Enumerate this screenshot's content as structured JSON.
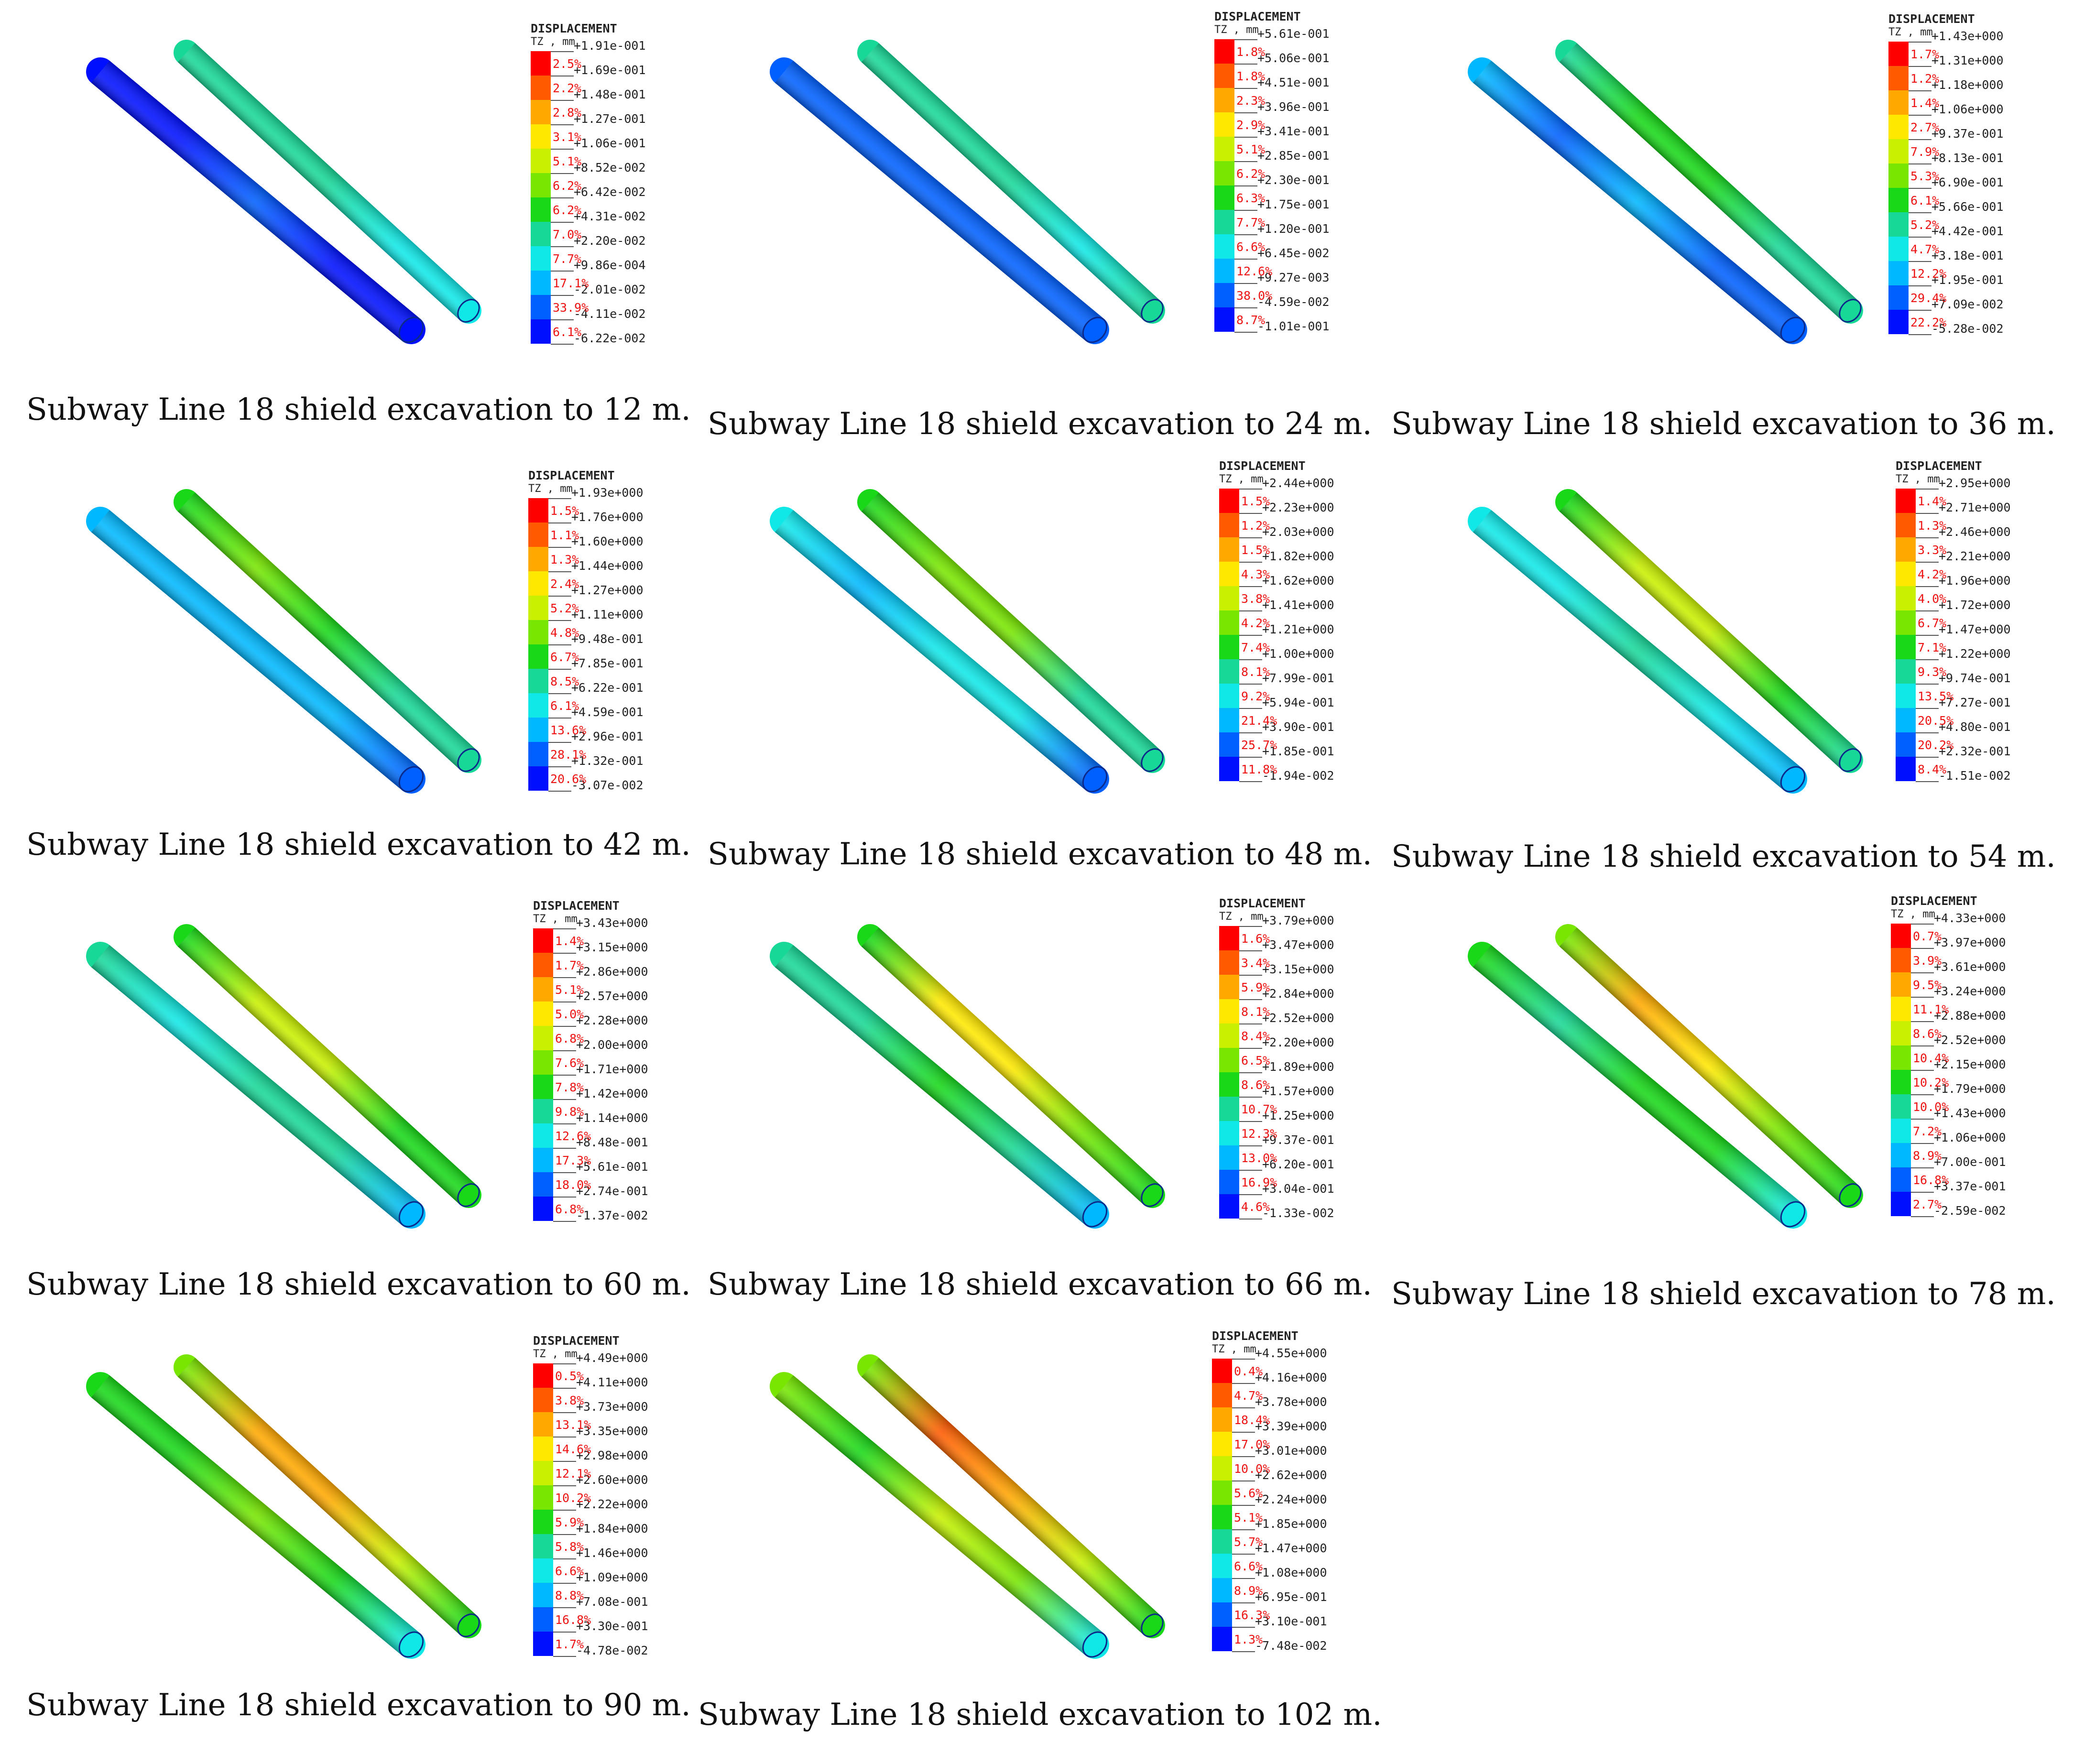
{
  "legend_title": "DISPLACEMENT",
  "legend_unit": "TZ , mm",
  "band_colors": [
    "#ff0000",
    "#ff5a00",
    "#ffa800",
    "#ffe800",
    "#c8f000",
    "#78e600",
    "#18d818",
    "#18d898",
    "#10e8e8",
    "#00b8ff",
    "#0060ff",
    "#0010ff"
  ],
  "panels": [
    {
      "caption": "Subway Line 18 shield excavation to 12 m.",
      "values": [
        "+1.91e-001",
        "+1.69e-001",
        "+1.48e-001",
        "+1.27e-001",
        "+1.06e-001",
        "+8.52e-002",
        "+6.42e-002",
        "+4.31e-002",
        "+2.20e-002",
        "+9.86e-004",
        "-2.01e-002",
        "-4.11e-002",
        "-6.22e-002"
      ],
      "percents": [
        "2.5%",
        "2.2%",
        "2.8%",
        "3.1%",
        "5.1%",
        "6.2%",
        "6.2%",
        "7.0%",
        "7.7%",
        "17.1%",
        "33.9%",
        "6.1%"
      ]
    },
    {
      "caption": "Subway Line 18 shield excavation to 24 m.",
      "values": [
        "+5.61e-001",
        "+5.06e-001",
        "+4.51e-001",
        "+3.96e-001",
        "+3.41e-001",
        "+2.85e-001",
        "+2.30e-001",
        "+1.75e-001",
        "+1.20e-001",
        "+6.45e-002",
        "+9.27e-003",
        "-4.59e-002",
        "-1.01e-001"
      ],
      "percents": [
        "1.8%",
        "1.8%",
        "2.3%",
        "2.9%",
        "5.1%",
        "6.2%",
        "6.3%",
        "7.7%",
        "6.6%",
        "12.6%",
        "38.0%",
        "8.7%"
      ]
    },
    {
      "caption": "Subway Line 18 shield excavation to 36 m.",
      "values": [
        "+1.43e+000",
        "+1.31e+000",
        "+1.18e+000",
        "+1.06e+000",
        "+9.37e-001",
        "+8.13e-001",
        "+6.90e-001",
        "+5.66e-001",
        "+4.42e-001",
        "+3.18e-001",
        "+1.95e-001",
        "+7.09e-002",
        "-5.28e-002"
      ],
      "percents": [
        "1.7%",
        "1.2%",
        "1.4%",
        "2.7%",
        "7.9%",
        "5.3%",
        "6.1%",
        "5.2%",
        "4.7%",
        "12.2%",
        "29.4%",
        "22.2%"
      ]
    },
    {
      "caption": "Subway Line 18 shield excavation to 42 m.",
      "values": [
        "+1.93e+000",
        "+1.76e+000",
        "+1.60e+000",
        "+1.44e+000",
        "+1.27e+000",
        "+1.11e+000",
        "+9.48e-001",
        "+7.85e-001",
        "+6.22e-001",
        "+4.59e-001",
        "+2.96e-001",
        "+1.32e-001",
        "-3.07e-002"
      ],
      "percents": [
        "1.5%",
        "1.1%",
        "1.3%",
        "2.4%",
        "5.2%",
        "4.8%",
        "6.7%",
        "8.5%",
        "6.1%",
        "13.6%",
        "28.1%",
        "20.6%"
      ]
    },
    {
      "caption": "Subway Line 18 shield excavation to 48 m.",
      "values": [
        "+2.44e+000",
        "+2.23e+000",
        "+2.03e+000",
        "+1.82e+000",
        "+1.62e+000",
        "+1.41e+000",
        "+1.21e+000",
        "+1.00e+000",
        "+7.99e-001",
        "+5.94e-001",
        "+3.90e-001",
        "+1.85e-001",
        "-1.94e-002"
      ],
      "percents": [
        "1.5%",
        "1.2%",
        "1.5%",
        "4.3%",
        "3.8%",
        "4.2%",
        "7.4%",
        "8.1%",
        "9.2%",
        "21.4%",
        "25.7%",
        "11.8%"
      ]
    },
    {
      "caption": "Subway Line 18 shield excavation to 54 m.",
      "values": [
        "+2.95e+000",
        "+2.71e+000",
        "+2.46e+000",
        "+2.21e+000",
        "+1.96e+000",
        "+1.72e+000",
        "+1.47e+000",
        "+1.22e+000",
        "+9.74e-001",
        "+7.27e-001",
        "+4.80e-001",
        "+2.32e-001",
        "-1.51e-002"
      ],
      "percents": [
        "1.4%",
        "1.3%",
        "3.3%",
        "4.2%",
        "4.0%",
        "6.7%",
        "7.1%",
        "9.3%",
        "13.5%",
        "20.5%",
        "20.2%",
        "8.4%"
      ]
    },
    {
      "caption": "Subway Line 18 shield excavation to 60 m.",
      "values": [
        "+3.43e+000",
        "+3.15e+000",
        "+2.86e+000",
        "+2.57e+000",
        "+2.28e+000",
        "+2.00e+000",
        "+1.71e+000",
        "+1.42e+000",
        "+1.14e+000",
        "+8.48e-001",
        "+5.61e-001",
        "+2.74e-001",
        "-1.37e-002"
      ],
      "percents": [
        "1.4%",
        "1.7%",
        "5.1%",
        "5.0%",
        "6.8%",
        "7.6%",
        "7.8%",
        "9.8%",
        "12.6%",
        "17.3%",
        "18.0%",
        "6.8%"
      ]
    },
    {
      "caption": "Subway Line 18 shield excavation to 66 m.",
      "values": [
        "+3.79e+000",
        "+3.47e+000",
        "+3.15e+000",
        "+2.84e+000",
        "+2.52e+000",
        "+2.20e+000",
        "+1.89e+000",
        "+1.57e+000",
        "+1.25e+000",
        "+9.37e-001",
        "+6.20e-001",
        "+3.04e-001",
        "-1.33e-002"
      ],
      "percents": [
        "1.6%",
        "3.4%",
        "5.9%",
        "8.1%",
        "8.4%",
        "6.5%",
        "8.6%",
        "10.7%",
        "12.3%",
        "13.0%",
        "16.9%",
        "4.6%"
      ]
    },
    {
      "caption": "Subway Line 18 shield excavation to 78 m.",
      "values": [
        "+4.33e+000",
        "+3.97e+000",
        "+3.61e+000",
        "+3.24e+000",
        "+2.88e+000",
        "+2.52e+000",
        "+2.15e+000",
        "+1.79e+000",
        "+1.43e+000",
        "+1.06e+000",
        "+7.00e-001",
        "+3.37e-001",
        "-2.59e-002"
      ],
      "percents": [
        "0.7%",
        "3.9%",
        "9.5%",
        "11.1%",
        "8.6%",
        "10.4%",
        "10.2%",
        "10.0%",
        "7.2%",
        "8.9%",
        "16.8%",
        "2.7%"
      ]
    },
    {
      "caption": "Subway Line 18 shield excavation to 90 m.",
      "values": [
        "+4.49e+000",
        "+4.11e+000",
        "+3.73e+000",
        "+3.35e+000",
        "+2.98e+000",
        "+2.60e+000",
        "+2.22e+000",
        "+1.84e+000",
        "+1.46e+000",
        "+1.09e+000",
        "+7.08e-001",
        "+3.30e-001",
        "-4.78e-002"
      ],
      "percents": [
        "0.5%",
        "3.8%",
        "13.1%",
        "14.6%",
        "12.1%",
        "10.2%",
        "5.9%",
        "5.8%",
        "6.6%",
        "8.8%",
        "16.8%",
        "1.7%"
      ]
    },
    {
      "caption": "Subway Line 18 shield excavation to 102 m.",
      "values": [
        "+4.55e+000",
        "+4.16e+000",
        "+3.78e+000",
        "+3.39e+000",
        "+3.01e+000",
        "+2.62e+000",
        "+2.24e+000",
        "+1.85e+000",
        "+1.47e+000",
        "+1.08e+000",
        "+6.95e-001",
        "+3.10e-001",
        "-7.48e-002"
      ],
      "percents": [
        "0.4%",
        "4.7%",
        "18.4%",
        "17.0%",
        "10.0%",
        "5.6%",
        "5.1%",
        "5.7%",
        "6.6%",
        "8.9%",
        "16.3%",
        "1.3%"
      ]
    }
  ]
}
